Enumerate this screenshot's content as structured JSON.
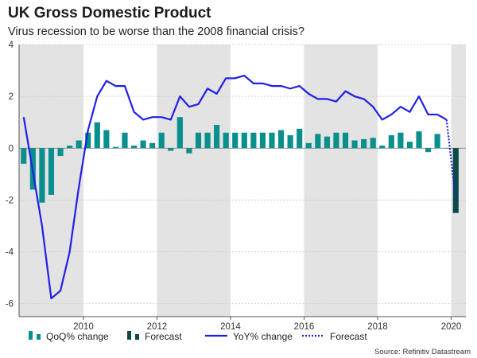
{
  "chart_data": {
    "type": "bar+line",
    "title": "UK Gross Domestic Product",
    "subtitle": "Virus recession to be worse than the 2008 financial crisis?",
    "source": "Source: Refinitiv Datastream",
    "xlabel": "",
    "ylabel": "",
    "xlim": [
      2008.25,
      2020.4
    ],
    "ylim": [
      -6.5,
      4
    ],
    "x_ticks": [
      2010,
      2012,
      2014,
      2016,
      2018,
      2020
    ],
    "y_ticks": [
      4,
      2,
      0,
      -2,
      -4,
      -6
    ],
    "grid": true,
    "shaded_periods": [
      [
        2008.25,
        2010
      ],
      [
        2012,
        2014
      ],
      [
        2016,
        2018
      ],
      [
        2020,
        2020.4
      ]
    ],
    "legend_placement": "bottom",
    "colors": {
      "qoq": "#0a8f8f",
      "qoq_forecast": "#0b4a45",
      "yoy": "#1f1fe8",
      "shade": "#e3e3e3",
      "grid": "#c8c8c8"
    },
    "legend": [
      {
        "label": "QoQ% change",
        "kind": "bar",
        "color_key": "qoq"
      },
      {
        "label": "Forecast",
        "kind": "bar",
        "color_key": "qoq_forecast"
      },
      {
        "label": "YoY% change",
        "kind": "line",
        "color_key": "yoy"
      },
      {
        "label": "Forecast",
        "kind": "dotted",
        "color_key": "yoy"
      }
    ],
    "series": [
      {
        "name": "QoQ% change",
        "type": "bar",
        "x": [
          2008.25,
          2008.5,
          2008.75,
          2009.0,
          2009.25,
          2009.5,
          2009.75,
          2010.0,
          2010.25,
          2010.5,
          2010.75,
          2011.0,
          2011.25,
          2011.5,
          2011.75,
          2012.0,
          2012.25,
          2012.5,
          2012.75,
          2013.0,
          2013.25,
          2013.5,
          2013.75,
          2014.0,
          2014.25,
          2014.5,
          2014.75,
          2015.0,
          2015.25,
          2015.5,
          2015.75,
          2016.0,
          2016.25,
          2016.5,
          2016.75,
          2017.0,
          2017.25,
          2017.5,
          2017.75,
          2018.0,
          2018.25,
          2018.5,
          2018.75,
          2019.0,
          2019.25,
          2019.5,
          2019.75
        ],
        "values": [
          -0.6,
          -1.6,
          -2.1,
          -1.8,
          -0.3,
          0.1,
          0.3,
          0.6,
          1.0,
          0.7,
          0.05,
          0.6,
          0.1,
          0.3,
          0.2,
          0.6,
          -0.1,
          1.2,
          -0.2,
          0.6,
          0.6,
          0.9,
          0.6,
          0.6,
          0.6,
          0.6,
          0.6,
          0.6,
          0.7,
          0.5,
          0.75,
          0.2,
          0.55,
          0.45,
          0.6,
          0.6,
          0.3,
          0.35,
          0.4,
          0.1,
          0.5,
          0.6,
          0.25,
          0.65,
          -0.15,
          0.55,
          0.0
        ]
      },
      {
        "name": "Forecast",
        "type": "bar",
        "x": [
          2020.0
        ],
        "values": [
          -2.5
        ]
      },
      {
        "name": "YoY% change",
        "type": "line",
        "x": [
          2008.25,
          2008.5,
          2008.75,
          2009.0,
          2009.25,
          2009.5,
          2009.75,
          2010.0,
          2010.25,
          2010.5,
          2010.75,
          2011.0,
          2011.25,
          2011.5,
          2011.75,
          2012.0,
          2012.25,
          2012.5,
          2012.75,
          2013.0,
          2013.25,
          2013.5,
          2013.75,
          2014.0,
          2014.25,
          2014.5,
          2014.75,
          2015.0,
          2015.25,
          2015.5,
          2015.75,
          2016.0,
          2016.25,
          2016.5,
          2016.75,
          2017.0,
          2017.25,
          2017.5,
          2017.75,
          2018.0,
          2018.25,
          2018.5,
          2018.75,
          2019.0,
          2019.25,
          2019.5,
          2019.75
        ],
        "values": [
          1.2,
          -0.9,
          -3.0,
          -5.8,
          -5.5,
          -4.0,
          -1.5,
          0.7,
          2.0,
          2.6,
          2.4,
          2.4,
          1.4,
          1.1,
          1.2,
          1.2,
          1.1,
          2.0,
          1.6,
          1.7,
          2.3,
          2.1,
          2.7,
          2.7,
          2.8,
          2.5,
          2.5,
          2.4,
          2.4,
          2.3,
          2.4,
          2.1,
          1.9,
          1.9,
          1.8,
          2.2,
          2.0,
          1.9,
          1.6,
          1.1,
          1.3,
          1.6,
          1.4,
          2.0,
          1.3,
          1.3,
          1.1
        ]
      },
      {
        "name": "Forecast",
        "type": "dotted-line",
        "x": [
          2019.75,
          2020.0
        ],
        "values": [
          1.1,
          -2.0
        ]
      }
    ]
  }
}
